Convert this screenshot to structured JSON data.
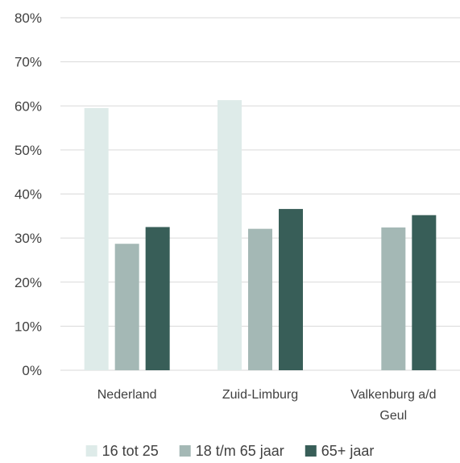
{
  "chart_data": {
    "type": "bar",
    "categories": [
      "Nederland",
      "Zuid-Limburg",
      "Valkenburg a/d Geul"
    ],
    "series": [
      {
        "name": "16 tot 25",
        "color": "#deebe9",
        "values": [
          59.5,
          61.3,
          null
        ]
      },
      {
        "name": "18 t/m 65 jaar",
        "color": "#a4b8b5",
        "values": [
          28.7,
          32.1,
          32.4
        ]
      },
      {
        "name": "65+ jaar",
        "color": "#385e58",
        "values": [
          32.5,
          36.6,
          35.2
        ]
      }
    ],
    "ylim": [
      0,
      80
    ],
    "yticks": [
      0,
      10,
      20,
      30,
      40,
      50,
      60,
      70,
      80
    ],
    "ytick_labels": [
      "0%",
      "10%",
      "20%",
      "30%",
      "40%",
      "50%",
      "60%",
      "70%",
      "80%"
    ],
    "grid": true,
    "legend_position": "bottom",
    "title": "",
    "xlabel": "",
    "ylabel": ""
  }
}
